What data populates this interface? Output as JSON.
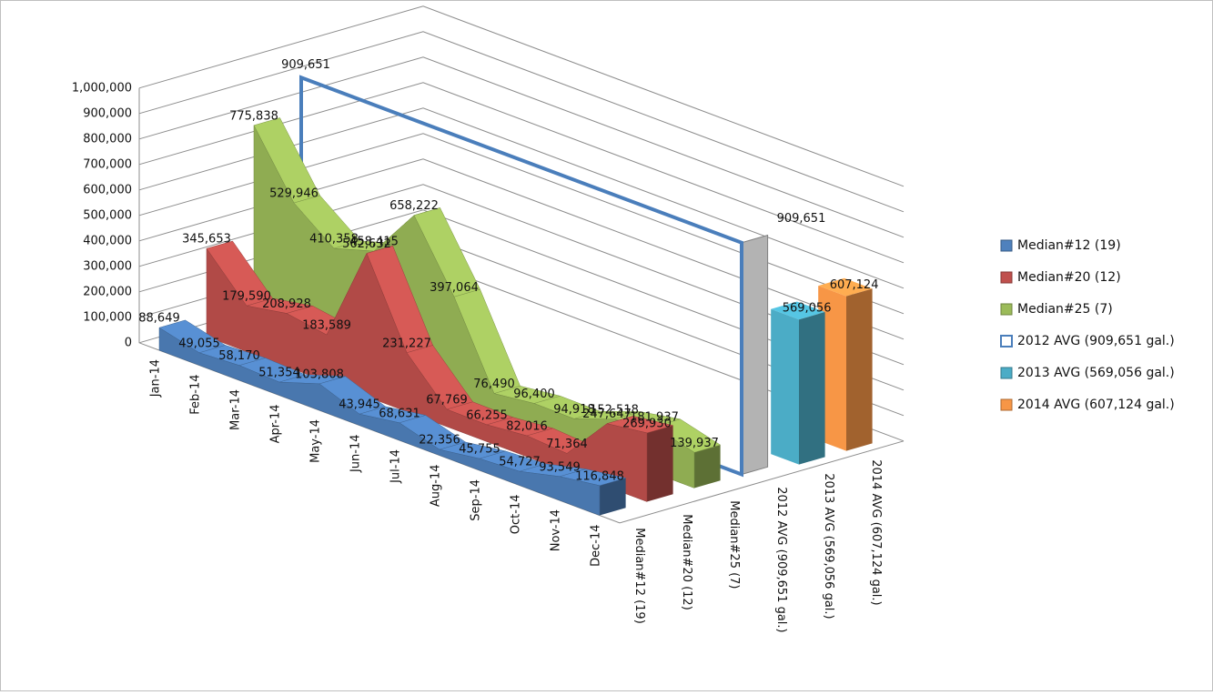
{
  "chart_data": {
    "type": "area",
    "categories": [
      "Jan-14",
      "Feb-14",
      "Mar-14",
      "Apr-14",
      "May-14",
      "Jun-14",
      "Jul-14",
      "Aug-14",
      "Sep-14",
      "Oct-14",
      "Nov-14",
      "Dec-14"
    ],
    "series": [
      {
        "name": "Median#12 (19)",
        "color": "#4f81bd",
        "values": [
          88649,
          49055,
          58170,
          51354,
          103808,
          43945,
          68631,
          22356,
          45755,
          54727,
          93549,
          116848
        ],
        "value_labels": [
          "88,649",
          "49,055",
          "58,170",
          "51,354",
          "103,808",
          "43,945",
          "68,631",
          "22,356",
          "45,755",
          "54,727",
          "93,549",
          "116,848"
        ]
      },
      {
        "name": "Median#20 (12)",
        "color": "#c0504d",
        "values": [
          345653,
          179590,
          208928,
          183589,
          562632,
          231227,
          67769,
          66255,
          82016,
          71364,
          247647,
          269930
        ],
        "value_labels": [
          "345,653",
          "179,590",
          "208,928",
          "183,589",
          "562,632",
          "231,227",
          "67,769",
          "66,255",
          "82,016",
          "71,364",
          "247,647",
          "269,930"
        ]
      },
      {
        "name": "Median#25 (7)",
        "color": "#9bbb59",
        "values": [
          775838,
          529946,
          410358,
          458415,
          658222,
          397064,
          76490,
          96400,
          94918,
          152518,
          181937,
          139937
        ],
        "value_labels": [
          "775,838",
          "529,946",
          "410,358",
          "458,415",
          "658,222",
          "397,064",
          "76,490",
          "96,400",
          "94,918",
          "152,518",
          "181,937",
          "139,937"
        ]
      },
      {
        "name": "2012 AVG (909,651 gal.)",
        "color": "#4a7ebb",
        "filled": false,
        "value": 909651,
        "value_label": "909,651"
      },
      {
        "name": "2013 AVG (569,056 gal.)",
        "color": "#4bacc6",
        "filled": true,
        "value": 569056,
        "value_label": "569,056"
      },
      {
        "name": "2014 AVG (607,124 gal.)",
        "color": "#f79646",
        "filled": true,
        "value": 607124,
        "value_label": "607,124"
      }
    ],
    "ylim": [
      0,
      1000000
    ],
    "yticks": [
      0,
      {
        "value": 100000,
        "label": "100,000"
      },
      {
        "value": 200000,
        "label": "200,000"
      },
      {
        "value": 300000,
        "label": "300,000"
      },
      {
        "value": 400000,
        "label": "400,000"
      },
      {
        "value": 500000,
        "label": "500,000"
      },
      {
        "value": 600000,
        "label": "600,000"
      },
      {
        "value": 700000,
        "label": "700,000"
      },
      {
        "value": 800000,
        "label": "800,000"
      },
      {
        "value": 900000,
        "label": "900,000"
      },
      {
        "value": 1000000,
        "label": "1,000,000"
      }
    ],
    "grid": true,
    "legend": "right"
  }
}
